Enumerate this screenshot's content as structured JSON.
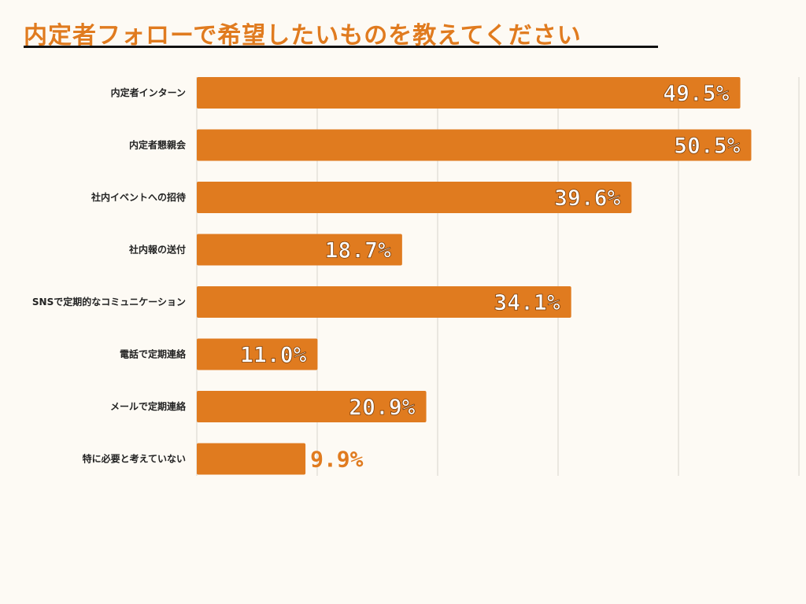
{
  "title": "内定者フォローで希望したいものを教えてください",
  "colors": {
    "bar": "#e07b1f",
    "label_inside": "#ffffff",
    "label_inside_stroke": "#7a3d0a",
    "label_outside": "#e07b1f",
    "grid": "#d8d4cc",
    "background": "#fdfaf4"
  },
  "chart_data": {
    "type": "bar",
    "orientation": "horizontal",
    "title": "内定者フォローで希望したいものを教えてください",
    "categories": [
      "内定者インターン",
      "内定者懇親会",
      "社内イベントへの招待",
      "社内報の送付",
      "SNSで定期的なコミュニケーション",
      "電話で定期連絡",
      "メールで定期連絡",
      "特に必要と考えていない"
    ],
    "values": [
      49.5,
      50.5,
      39.6,
      18.7,
      34.1,
      11.0,
      20.9,
      9.9
    ],
    "labels": [
      "49.5%",
      "50.5%",
      "39.6%",
      "18.7%",
      "34.1%",
      "11.0%",
      "20.9%",
      "9.9%"
    ],
    "unit": "%",
    "xlim": [
      0,
      55
    ],
    "grid": true,
    "xlabel": "",
    "ylabel": ""
  }
}
